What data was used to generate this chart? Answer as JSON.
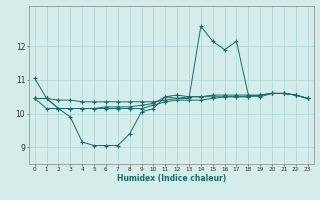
{
  "title": "",
  "xlabel": "Humidex (Indice chaleur)",
  "bg_color": "#d4ecea",
  "line_color": "#1a6b6b",
  "grid_color": "#a8d4d4",
  "xlim": [
    -0.5,
    23.5
  ],
  "ylim": [
    8.5,
    13.2
  ],
  "xticks": [
    0,
    1,
    2,
    3,
    4,
    5,
    6,
    7,
    8,
    9,
    10,
    11,
    12,
    13,
    14,
    15,
    16,
    17,
    18,
    19,
    20,
    21,
    22,
    23
  ],
  "yticks": [
    9,
    10,
    11,
    12
  ],
  "series": [
    {
      "x": [
        0,
        1,
        2,
        3,
        4,
        5,
        6,
        7,
        8,
        9,
        10,
        11,
        12,
        13,
        14,
        15,
        16,
        17,
        18,
        19,
        20,
        21,
        22,
        23
      ],
      "y": [
        11.05,
        10.45,
        10.15,
        9.9,
        9.15,
        9.05,
        9.05,
        9.05,
        9.4,
        10.05,
        10.15,
        10.5,
        10.45,
        10.45,
        12.6,
        12.15,
        11.9,
        12.15,
        10.55,
        10.5,
        10.6,
        10.6,
        10.55,
        10.45
      ]
    },
    {
      "x": [
        0,
        1,
        2,
        3,
        4,
        5,
        6,
        7,
        8,
        9,
        10,
        11,
        12,
        13,
        14,
        15,
        16,
        17,
        18,
        19,
        20,
        21,
        22,
        23
      ],
      "y": [
        10.45,
        10.45,
        10.15,
        10.15,
        10.15,
        10.15,
        10.2,
        10.2,
        10.2,
        10.25,
        10.3,
        10.5,
        10.55,
        10.5,
        10.5,
        10.5,
        10.5,
        10.5,
        10.5,
        10.55,
        10.6,
        10.6,
        10.55,
        10.45
      ]
    },
    {
      "x": [
        0,
        1,
        2,
        3,
        4,
        5,
        6,
        7,
        8,
        9,
        10,
        11,
        12,
        13,
        14,
        15,
        16,
        17,
        18,
        19,
        20,
        21,
        22,
        23
      ],
      "y": [
        10.45,
        10.15,
        10.15,
        10.15,
        10.15,
        10.15,
        10.15,
        10.15,
        10.15,
        10.15,
        10.25,
        10.35,
        10.4,
        10.4,
        10.4,
        10.45,
        10.5,
        10.5,
        10.5,
        10.55,
        10.6,
        10.6,
        10.55,
        10.45
      ]
    },
    {
      "x": [
        0,
        1,
        2,
        3,
        4,
        5,
        6,
        7,
        8,
        9,
        10,
        11,
        12,
        13,
        14,
        15,
        16,
        17,
        18,
        19,
        20,
        21,
        22,
        23
      ],
      "y": [
        10.45,
        10.45,
        10.4,
        10.4,
        10.35,
        10.35,
        10.35,
        10.35,
        10.35,
        10.35,
        10.35,
        10.4,
        10.45,
        10.5,
        10.5,
        10.55,
        10.55,
        10.55,
        10.55,
        10.55,
        10.6,
        10.6,
        10.55,
        10.45
      ]
    }
  ]
}
